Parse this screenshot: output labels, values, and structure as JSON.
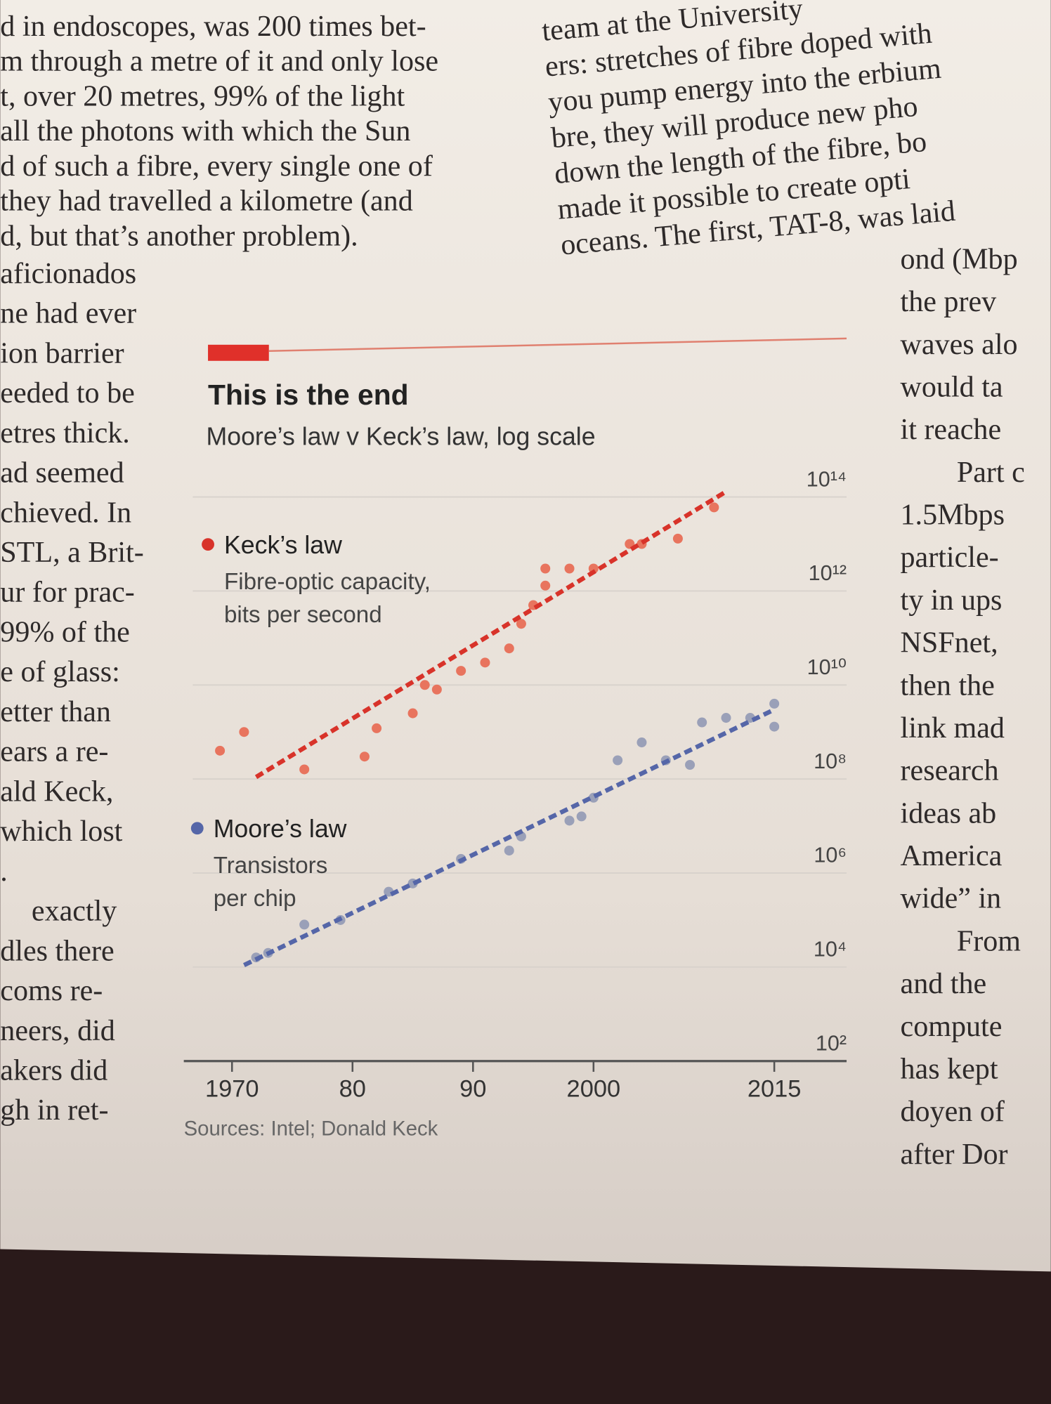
{
  "page_text": {
    "left_column": [
      "d in endoscopes, was 200 times bet-",
      "m through a metre of it and only lose",
      "t, over 20 metres, 99% of the light",
      "all the photons with which the Sun",
      "d of such a fibre, every single one of",
      "they had travelled a kilometre (and",
      "d, but that’s another problem).",
      "aficionados",
      "ne had ever",
      "ion barrier",
      "eeded to be",
      "etres thick.",
      "ad seemed",
      "chieved. In",
      "STL, a Brit-",
      "ur for prac-",
      "99% of the",
      "e of glass:",
      "etter than",
      "ears a re-",
      "ald Keck,",
      "which lost",
      ".",
      "exactly",
      "dles there",
      "coms re-",
      "neers, did",
      "akers did",
      "gh in ret-"
    ],
    "middle_column": [
      "team at the University",
      "ers: stretches of fibre doped with",
      "you pump energy into the erbium",
      "bre, they will produce new pho",
      "down the length of the fibre, bo",
      "made it possible to create opti",
      "oceans. The first, TAT-8, was laid"
    ],
    "right_column": [
      "ond (Mbp",
      "the prev",
      "waves alo",
      "would ta",
      "it reache",
      "Part c",
      "1.5Mbps",
      "particle-",
      "ty in ups",
      "NSFnet,",
      "then the",
      "link mad",
      "research",
      "ideas ab",
      "America",
      "wide” in",
      "From",
      "and the",
      "compute",
      "has kept",
      "doyen of",
      "after Dor"
    ]
  },
  "chart_data": {
    "type": "scatter",
    "title": "This is the end",
    "subtitle": "Moore’s law v Keck’s law, log scale",
    "source": "Sources: Intel; Donald Keck",
    "yscale": "log",
    "grid": true,
    "xlim": [
      1966,
      2021
    ],
    "ylim": [
      100,
      100000000000000.0
    ],
    "xticks": [
      1970,
      {
        "value": 1980,
        "label": "80"
      },
      {
        "value": 1990,
        "label": "90"
      },
      2000,
      2015
    ],
    "yticks": [
      {
        "value": 100,
        "label": "10²"
      },
      {
        "value": 10000,
        "label": "10⁴"
      },
      {
        "value": 1000000,
        "label": "10⁶"
      },
      {
        "value": 100000000,
        "label": "10⁸"
      },
      {
        "value": 10000000000,
        "label": "10¹⁰"
      },
      {
        "value": 1000000000000,
        "label": "10¹²"
      },
      {
        "value": 100000000000000.0,
        "label": "10¹⁴"
      }
    ],
    "series": [
      {
        "name": "Keck’s law",
        "description": [
          "Fibre-optic capacity,",
          "bits per second"
        ],
        "color": "#e8745e",
        "x": [
          1969,
          1971,
          1976,
          1981,
          1982,
          1985,
          1986,
          1987,
          1989,
          1991,
          1993,
          1994,
          1995,
          1996,
          1996,
          1998,
          2000,
          2003,
          2004,
          2007,
          2010
        ],
        "values": [
          400000000.0,
          1000000000.0,
          160000000.0,
          300000000.0,
          1200000000.0,
          2500000000.0,
          10000000000.0,
          8000000000.0,
          20000000000.0,
          30000000000.0,
          60000000000.0,
          200000000000.0,
          500000000000.0,
          1300000000000.0,
          3000000000000.0,
          3000000000000.0,
          3000000000000.0,
          10000000000000.0,
          10000000000000.0,
          13000000000000.0,
          60000000000000.0
        ],
        "trend": {
          "x": [
            1972,
            2011
          ],
          "values": [
            110000000.0,
            130000000000000.0
          ],
          "color": "#d8332a"
        }
      },
      {
        "name": "Moore’s law",
        "description": [
          "Transistors",
          "per chip"
        ],
        "color": "#9aa0b8",
        "x": [
          1972,
          1973,
          1976,
          1979,
          1983,
          1985,
          1989,
          1993,
          1994,
          1998,
          1999,
          2000,
          2002,
          2004,
          2006,
          2008,
          2009,
          2011,
          2013,
          2015,
          2015
        ],
        "values": [
          16000,
          20000,
          80000,
          100000,
          400000,
          600000,
          2000000,
          3000000,
          6000000,
          13000000,
          16000000,
          40000000,
          250000000,
          600000000,
          250000000,
          200000000,
          1600000000,
          2000000000,
          2000000000,
          4000000000,
          1300000000
        ],
        "trend": {
          "x": [
            1971,
            2015
          ],
          "values": [
            11000,
            3000000000
          ],
          "color": "#5566a8"
        }
      }
    ]
  }
}
